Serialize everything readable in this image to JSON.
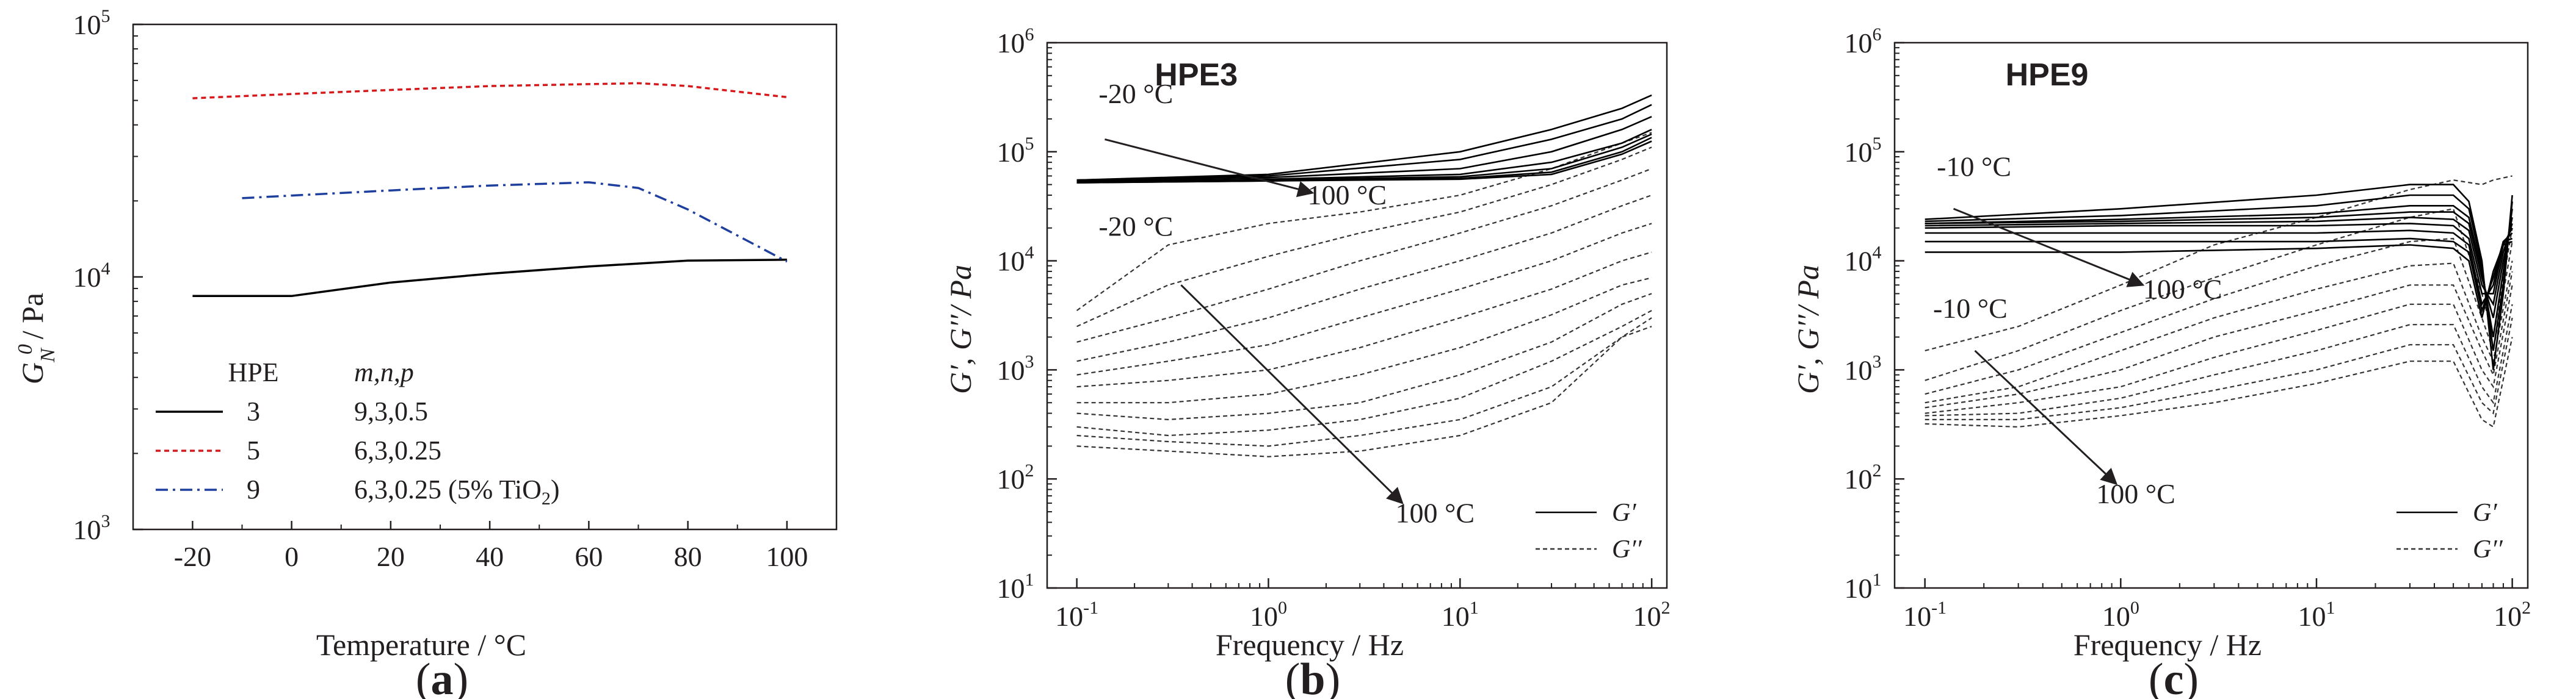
{
  "figure": {
    "panel_labels": {
      "a": {
        "open": "(",
        "letter": "a",
        "close": ")"
      },
      "b": {
        "open": "(",
        "letter": "b",
        "close": ")"
      },
      "c": {
        "open": "(",
        "letter": "c",
        "close": ")"
      }
    }
  },
  "colors": {
    "axis": "#231f20",
    "hpe3": "#000000",
    "hpe5": "#d7191c",
    "hpe9": "#1f3f9f",
    "sweep": "#333333"
  },
  "chart_data": [
    {
      "id": "a",
      "type": "line",
      "ylabel_main": "G",
      "ylabel_sub": "N",
      "ylabel_sup": "0",
      "ylabel_rest": "/ Pa",
      "xlabel": "Temperature / °C",
      "xlim": [
        -32,
        110
      ],
      "ylim": [
        1000,
        100000
      ],
      "yscale": "log",
      "x_ticks": [
        -20,
        0,
        20,
        40,
        60,
        80,
        100
      ],
      "y_ticks": [
        {
          "base": "10",
          "exp": "3"
        },
        {
          "base": "10",
          "exp": "4"
        },
        {
          "base": "10",
          "exp": "5"
        }
      ],
      "legend": {
        "header_hpe": "HPE",
        "header_params": "m,n,p",
        "entries": [
          {
            "hpe": "3",
            "params": "9,3,0.5",
            "params_suffix": ""
          },
          {
            "hpe": "5",
            "params": "6,3,0.25",
            "params_suffix": ""
          },
          {
            "hpe": "9",
            "params": "6,3,0.25 (5% TiO",
            "params_sub": "2",
            "params_suffix": ")"
          }
        ]
      },
      "series": [
        {
          "name": "3",
          "style": "solid",
          "x": [
            -20,
            0,
            20,
            40,
            60,
            80,
            100
          ],
          "values": [
            8400,
            8400,
            9500,
            10300,
            11000,
            11600,
            11700
          ]
        },
        {
          "name": "5",
          "style": "dotted",
          "x": [
            -20,
            0,
            20,
            40,
            60,
            70,
            80,
            100
          ],
          "values": [
            51000,
            53000,
            55000,
            57000,
            58000,
            58500,
            57000,
            51500
          ]
        },
        {
          "name": "9",
          "style": "dashdot",
          "x": [
            -10,
            0,
            20,
            40,
            60,
            70,
            80,
            100
          ],
          "values": [
            20500,
            21000,
            22000,
            23000,
            23700,
            22500,
            18500,
            11500
          ]
        }
      ]
    },
    {
      "id": "b",
      "type": "line",
      "title": "HPE3",
      "xscale": "log",
      "yscale": "log",
      "xlim": [
        0.07,
        120
      ],
      "ylim": [
        10,
        1000000
      ],
      "xlabel": "Frequency / Hz",
      "ylabel": "G′, G′′/ Pa",
      "x_ticks": [
        {
          "base": "10",
          "exp": "-1"
        },
        {
          "base": "10",
          "exp": "0"
        },
        {
          "base": "10",
          "exp": "1"
        },
        {
          "base": "10",
          "exp": "2"
        }
      ],
      "y_ticks": [
        {
          "base": "10",
          "exp": "1"
        },
        {
          "base": "10",
          "exp": "2"
        },
        {
          "base": "10",
          "exp": "3"
        },
        {
          "base": "10",
          "exp": "4"
        },
        {
          "base": "10",
          "exp": "5"
        },
        {
          "base": "10",
          "exp": "6"
        }
      ],
      "annotations": [
        {
          "text": "-20 °C",
          "x": 0.13,
          "y": 280000
        },
        {
          "text": "100 °C",
          "x": 1.6,
          "y": 33000
        },
        {
          "text": "-20 °C",
          "x": 0.13,
          "y": 17000
        },
        {
          "text": "100 °C",
          "x": 4.6,
          "y": 40
        }
      ],
      "arrows": [
        {
          "from": [
            0.14,
            130000
          ],
          "to": [
            1.7,
            42000
          ]
        },
        {
          "from": [
            0.35,
            6000
          ],
          "to": [
            5.0,
            60
          ]
        }
      ],
      "legend": {
        "storage": "G′",
        "loss": "G′′"
      },
      "storage_modulus": {
        "style": "solid",
        "freq_hz": [
          0.1,
          1,
          10,
          30,
          70,
          100
        ],
        "curves": [
          [
            55000,
            62000,
            100000,
            160000,
            250000,
            330000
          ],
          [
            55000,
            60000,
            85000,
            130000,
            200000,
            270000
          ],
          [
            54000,
            58000,
            70000,
            100000,
            160000,
            210000
          ],
          [
            53000,
            56000,
            62000,
            80000,
            120000,
            160000
          ],
          [
            53000,
            55000,
            59000,
            70000,
            110000,
            145000
          ],
          [
            52000,
            54000,
            57000,
            65000,
            100000,
            135000
          ],
          [
            52000,
            54000,
            56000,
            62000,
            95000,
            125000
          ]
        ]
      },
      "loss_modulus": {
        "style": "dashed",
        "freq_hz": [
          0.1,
          0.3,
          1,
          3,
          10,
          30,
          70,
          100
        ],
        "curves": [
          [
            3500,
            14000,
            22000,
            28000,
            40000,
            70000,
            120000,
            150000
          ],
          [
            2500,
            6000,
            11000,
            18000,
            28000,
            50000,
            85000,
            110000
          ],
          [
            1800,
            3000,
            5500,
            10000,
            18000,
            32000,
            55000,
            70000
          ],
          [
            1200,
            1800,
            3000,
            5500,
            10000,
            18000,
            32000,
            40000
          ],
          [
            900,
            1200,
            1700,
            3000,
            5500,
            10000,
            18000,
            22000
          ],
          [
            700,
            800,
            1000,
            1600,
            3000,
            5500,
            10000,
            12000
          ],
          [
            500,
            500,
            600,
            900,
            1600,
            3200,
            6000,
            7000
          ],
          [
            400,
            350,
            400,
            500,
            900,
            1800,
            4000,
            5000
          ],
          [
            300,
            250,
            280,
            350,
            550,
            1200,
            2500,
            3500
          ],
          [
            250,
            220,
            200,
            250,
            350,
            700,
            2000,
            3000
          ],
          [
            200,
            180,
            160,
            180,
            250,
            500,
            2000,
            2500
          ]
        ]
      }
    },
    {
      "id": "c",
      "type": "line",
      "title": "HPE9",
      "xscale": "log",
      "yscale": "log",
      "xlim": [
        0.07,
        120
      ],
      "ylim": [
        10,
        1000000
      ],
      "xlabel": "Frequency / Hz",
      "ylabel": "G′, G′′/ Pa",
      "x_ticks": [
        {
          "base": "10",
          "exp": "-1"
        },
        {
          "base": "10",
          "exp": "0"
        },
        {
          "base": "10",
          "exp": "1"
        },
        {
          "base": "10",
          "exp": "2"
        }
      ],
      "y_ticks": [
        {
          "base": "10",
          "exp": "1"
        },
        {
          "base": "10",
          "exp": "2"
        },
        {
          "base": "10",
          "exp": "3"
        },
        {
          "base": "10",
          "exp": "4"
        },
        {
          "base": "10",
          "exp": "5"
        },
        {
          "base": "10",
          "exp": "6"
        }
      ],
      "annotations": [
        {
          "text": "-10 °C",
          "x": 0.115,
          "y": 60000
        },
        {
          "text": "100 °C",
          "x": 1.3,
          "y": 4500
        },
        {
          "text": "-10 °C",
          "x": 0.11,
          "y": 3000
        },
        {
          "text": "100 °C",
          "x": 0.75,
          "y": 60
        }
      ],
      "arrows": [
        {
          "from": [
            0.14,
            30000
          ],
          "to": [
            1.3,
            6000
          ]
        },
        {
          "from": [
            0.18,
            1500
          ],
          "to": [
            0.95,
            90
          ]
        }
      ],
      "legend": {
        "storage": "G′",
        "loss": "G′′"
      },
      "storage_modulus": {
        "style": "solid",
        "freq_hz": [
          0.1,
          1,
          10,
          30,
          50,
          60,
          70,
          80,
          90,
          100
        ],
        "curves": [
          [
            24000,
            30000,
            40000,
            50000,
            50000,
            35000,
            10000,
            1000,
            5000,
            40000
          ],
          [
            23000,
            26000,
            32000,
            40000,
            40000,
            30000,
            9000,
            1500,
            6000,
            35000
          ],
          [
            22000,
            24000,
            27000,
            32000,
            32000,
            25000,
            8000,
            2000,
            8000,
            30000
          ],
          [
            22000,
            23000,
            25000,
            28000,
            28000,
            22000,
            7000,
            3000,
            10000,
            25000
          ],
          [
            21000,
            22000,
            23000,
            25000,
            24000,
            19000,
            6000,
            4000,
            12000,
            22000
          ],
          [
            20000,
            21000,
            21000,
            22000,
            21000,
            16000,
            5000,
            5000,
            14000,
            20000
          ],
          [
            18000,
            18000,
            18000,
            19000,
            18000,
            14000,
            4000,
            6000,
            15000,
            18000
          ],
          [
            15000,
            15000,
            15000,
            16000,
            15000,
            12000,
            3500,
            7000,
            15000,
            16000
          ],
          [
            12000,
            12000,
            13000,
            14000,
            13000,
            10000,
            3000,
            8000,
            14000,
            15000
          ]
        ]
      },
      "loss_modulus": {
        "style": "dashed",
        "freq_hz": [
          0.1,
          0.3,
          1,
          3,
          10,
          30,
          50,
          70,
          80,
          100
        ],
        "curves": [
          [
            1500,
            2500,
            6000,
            14000,
            25000,
            45000,
            55000,
            50000,
            55000,
            60000
          ],
          [
            800,
            1500,
            3500,
            7000,
            14000,
            25000,
            30000,
            5000,
            2000,
            20000
          ],
          [
            600,
            1000,
            2200,
            4500,
            9000,
            15000,
            16000,
            3000,
            1500,
            15000
          ],
          [
            500,
            700,
            1500,
            3000,
            5500,
            9000,
            9500,
            2000,
            1200,
            10000
          ],
          [
            450,
            600,
            1000,
            2000,
            3500,
            6000,
            6000,
            1500,
            900,
            8000
          ],
          [
            400,
            500,
            700,
            1300,
            2300,
            4000,
            4000,
            1000,
            700,
            6000
          ],
          [
            380,
            400,
            550,
            900,
            1500,
            2600,
            2600,
            700,
            500,
            4000
          ],
          [
            350,
            350,
            450,
            650,
            1000,
            1700,
            1700,
            500,
            400,
            3000
          ],
          [
            320,
            300,
            380,
            500,
            750,
            1200,
            1200,
            350,
            300,
            2000
          ]
        ]
      }
    }
  ]
}
